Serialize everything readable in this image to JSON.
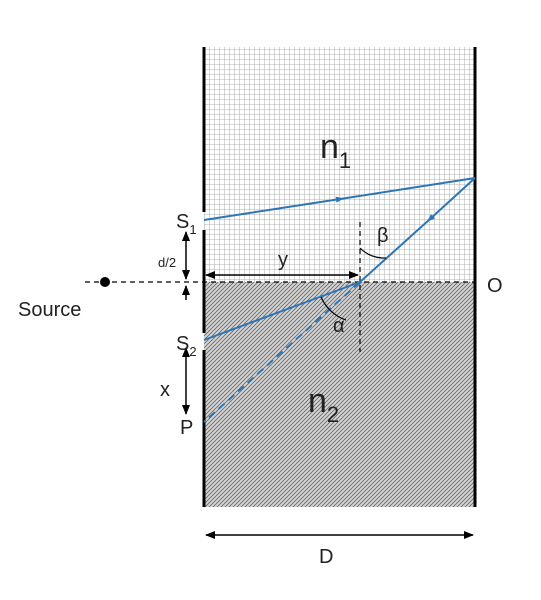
{
  "labels": {
    "n1": {
      "text": "n",
      "sub": "1"
    },
    "n2": {
      "text": "n",
      "sub": "2"
    },
    "s1": {
      "text": "S",
      "sub": "1"
    },
    "s2": {
      "text": "S",
      "sub": "2"
    },
    "half_d": "d/2",
    "y": "y",
    "beta": "β",
    "alpha": "α",
    "o": "O",
    "source": "Source",
    "x": "x",
    "p": "P",
    "d": "D"
  }
}
